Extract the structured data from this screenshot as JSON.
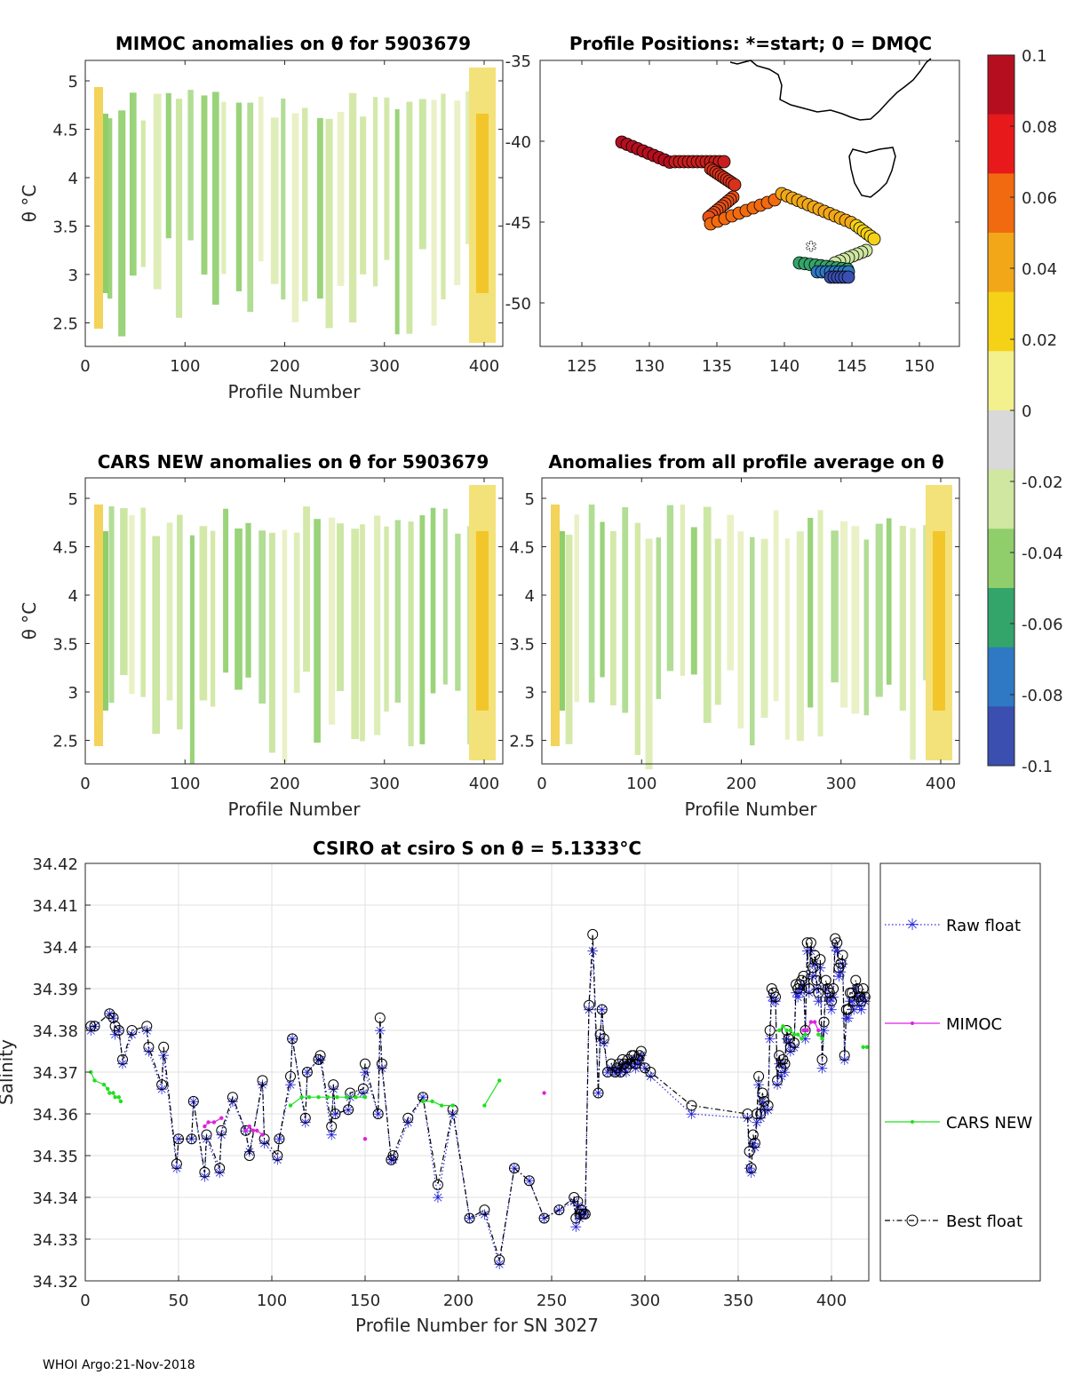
{
  "footer": "WHOI Argo:21-Nov-2018",
  "colorbar": {
    "ticks": [
      "0.1",
      "0.08",
      "0.06",
      "0.04",
      "0.02",
      "0",
      "-0.02",
      "-0.04",
      "-0.06",
      "-0.08",
      "-0.1"
    ],
    "colors": [
      "#b50f1f",
      "#e8191b",
      "#f26a10",
      "#f2a718",
      "#f5d218",
      "#f3f08e",
      "#d9d9d9",
      "#cfe7a0",
      "#8fce6a",
      "#33a56a",
      "#2f79c4",
      "#3a4fb0"
    ]
  },
  "panels": {
    "mimoc": {
      "title": "MIMOC anomalies on θ  for 5903679",
      "xlabel": "Profile Number",
      "ylabel": "θ °C",
      "xticks": [
        "0",
        "100",
        "200",
        "300",
        "400"
      ],
      "yticks": [
        "5",
        "4.5",
        "4",
        "3.5",
        "3",
        "2.5"
      ]
    },
    "positions": {
      "title": "Profile Positions: *=start; 0 = DMQC",
      "xticks": [
        "125",
        "130",
        "135",
        "140",
        "145",
        "150"
      ],
      "yticks": [
        "-35",
        "-40",
        "-45",
        "-50"
      ]
    },
    "cars": {
      "title": "CARS NEW anomalies on θ for 5903679",
      "xlabel": "Profile Number",
      "ylabel": "θ °C",
      "xticks": [
        "0",
        "100",
        "200",
        "300",
        "400"
      ],
      "yticks": [
        "5",
        "4.5",
        "4",
        "3.5",
        "3",
        "2.5"
      ]
    },
    "allavg": {
      "title": "Anomalies from all profile average on θ",
      "xlabel": "Profile Number",
      "xticks": [
        "0",
        "100",
        "200",
        "300",
        "400"
      ],
      "yticks": [
        "5",
        "4.5",
        "4",
        "3.5",
        "3",
        "2.5"
      ]
    }
  },
  "chart_data": {
    "type": "line",
    "title": "CSIRO at csiro S on θ = 5.1333°C",
    "xlabel": "Profile Number for SN 3027",
    "ylabel": "Salinity",
    "xlim": [
      0,
      420
    ],
    "ylim": [
      34.32,
      34.42
    ],
    "xticks": [
      "0",
      "50",
      "100",
      "150",
      "200",
      "250",
      "300",
      "350",
      "400"
    ],
    "yticks": [
      "34.42",
      "34.41",
      "34.4",
      "34.39",
      "34.38",
      "34.37",
      "34.36",
      "34.35",
      "34.34",
      "34.33",
      "34.32"
    ],
    "legend": [
      "Raw float",
      "MIMOC",
      "CARS NEW",
      "Best float"
    ],
    "series": [
      {
        "name": "Best float",
        "x": [
          3,
          5,
          13,
          15,
          16,
          18,
          20,
          25,
          33,
          34,
          41,
          42,
          49,
          50,
          57,
          58,
          64,
          65,
          72,
          73,
          79,
          86,
          88,
          95,
          96,
          103,
          104,
          110,
          111,
          118,
          119,
          125,
          126,
          132,
          133,
          134,
          141,
          142,
          149,
          150,
          157,
          158,
          159,
          164,
          165,
          173,
          181,
          189,
          197,
          206,
          214,
          222,
          230,
          238,
          246,
          254,
          262,
          263,
          264,
          265,
          266,
          267,
          268,
          270,
          272,
          275,
          276,
          277,
          278,
          280,
          282,
          284,
          285,
          286,
          287,
          288,
          289,
          290,
          291,
          292,
          293,
          294,
          295,
          296,
          297,
          298,
          300,
          303,
          325,
          355,
          356,
          357,
          358,
          359,
          360,
          361,
          362,
          363,
          364,
          366,
          367,
          368,
          369,
          370,
          371,
          372,
          373,
          374,
          375,
          376,
          377,
          378,
          380,
          381,
          382,
          383,
          384,
          385,
          386,
          387,
          388,
          389,
          390,
          391,
          392,
          393,
          394,
          395,
          396,
          397,
          398,
          399,
          400,
          401,
          402,
          403,
          404,
          405,
          406,
          407,
          408,
          409,
          410,
          411,
          412,
          413,
          414,
          415,
          416,
          417,
          418
        ],
        "y": [
          34.381,
          34.381,
          34.384,
          34.383,
          34.381,
          34.38,
          34.373,
          34.38,
          34.381,
          34.376,
          34.367,
          34.376,
          34.348,
          34.354,
          34.354,
          34.363,
          34.346,
          34.355,
          34.347,
          34.356,
          34.364,
          34.356,
          34.35,
          34.368,
          34.354,
          34.35,
          34.354,
          34.369,
          34.378,
          34.359,
          34.37,
          34.373,
          34.374,
          34.357,
          34.367,
          34.36,
          34.361,
          34.365,
          34.366,
          34.372,
          34.36,
          34.383,
          34.372,
          34.349,
          34.35,
          34.359,
          34.364,
          34.343,
          34.361,
          34.335,
          34.337,
          34.325,
          34.347,
          34.344,
          34.335,
          34.337,
          34.34,
          34.335,
          34.339,
          34.336,
          34.337,
          34.336,
          34.336,
          34.386,
          34.403,
          34.365,
          34.379,
          34.385,
          34.378,
          34.37,
          34.372,
          34.37,
          34.371,
          34.372,
          34.37,
          34.373,
          34.372,
          34.371,
          34.373,
          34.372,
          34.374,
          34.374,
          34.372,
          34.373,
          34.374,
          34.375,
          34.371,
          34.37,
          34.362,
          34.36,
          34.351,
          34.347,
          34.355,
          34.353,
          34.36,
          34.369,
          34.36,
          34.365,
          34.363,
          34.362,
          34.38,
          34.39,
          34.389,
          34.388,
          34.368,
          34.374,
          34.371,
          34.373,
          34.372,
          34.38,
          34.378,
          34.376,
          34.377,
          34.391,
          34.39,
          34.391,
          34.392,
          34.393,
          34.38,
          34.401,
          34.39,
          34.401,
          34.395,
          34.398,
          34.392,
          34.389,
          34.397,
          34.373,
          34.382,
          34.392,
          34.39,
          34.389,
          34.387,
          34.39,
          34.402,
          34.401,
          34.395,
          34.396,
          34.398,
          34.374,
          34.385,
          34.385,
          34.389,
          34.389,
          34.387,
          34.392,
          34.39,
          34.388,
          34.387,
          34.39,
          34.388
        ]
      },
      {
        "name": "Raw float",
        "x": [
          3,
          5,
          13,
          15,
          16,
          18,
          20,
          25,
          33,
          34,
          41,
          42,
          49,
          50,
          57,
          58,
          64,
          65,
          72,
          73,
          79,
          86,
          88,
          95,
          96,
          103,
          104,
          110,
          111,
          118,
          119,
          125,
          126,
          132,
          133,
          134,
          141,
          142,
          149,
          150,
          157,
          158,
          159,
          164,
          165,
          173,
          181,
          189,
          197,
          206,
          214,
          222,
          230,
          238,
          246,
          254,
          262,
          263,
          264,
          265,
          266,
          267,
          268,
          270,
          272,
          275,
          276,
          277,
          278,
          280,
          282,
          284,
          285,
          286,
          287,
          288,
          289,
          290,
          291,
          292,
          293,
          294,
          295,
          296,
          297,
          298,
          300,
          303,
          325,
          355,
          356,
          357,
          358,
          359,
          360,
          361,
          362,
          363,
          364,
          366,
          367,
          368,
          369,
          370,
          371,
          372,
          373,
          374,
          375,
          376,
          377,
          378,
          380,
          381,
          382,
          383,
          384,
          385,
          386,
          387,
          388,
          389,
          390,
          391,
          392,
          393,
          394,
          395,
          396,
          397,
          398,
          399,
          400,
          401,
          402,
          403,
          404,
          405,
          406,
          407,
          408,
          409,
          410,
          411,
          412,
          413,
          414,
          415,
          416,
          417,
          418
        ],
        "y": [
          34.38,
          34.381,
          34.384,
          34.383,
          34.379,
          34.38,
          34.372,
          34.379,
          34.38,
          34.375,
          34.366,
          34.374,
          34.347,
          34.354,
          34.354,
          34.363,
          34.345,
          34.354,
          34.346,
          34.355,
          34.363,
          34.356,
          34.351,
          34.367,
          34.353,
          34.349,
          34.354,
          34.367,
          34.378,
          34.358,
          34.37,
          34.373,
          34.373,
          34.355,
          34.366,
          34.36,
          34.361,
          34.364,
          34.365,
          34.37,
          34.36,
          34.38,
          34.371,
          34.349,
          34.349,
          34.358,
          34.364,
          34.34,
          34.36,
          34.335,
          34.336,
          34.324,
          34.347,
          34.344,
          34.335,
          34.337,
          34.339,
          34.333,
          34.338,
          34.335,
          34.336,
          34.337,
          34.336,
          34.385,
          34.399,
          34.365,
          34.378,
          34.385,
          34.377,
          34.37,
          34.371,
          34.37,
          34.37,
          34.371,
          34.37,
          34.372,
          34.371,
          34.37,
          34.372,
          34.372,
          34.373,
          34.373,
          34.371,
          34.372,
          34.373,
          34.374,
          34.371,
          34.369,
          34.36,
          34.359,
          34.347,
          34.346,
          34.353,
          34.352,
          34.358,
          34.367,
          34.359,
          34.363,
          34.361,
          34.361,
          34.378,
          34.388,
          34.387,
          34.387,
          34.367,
          34.372,
          34.369,
          34.372,
          34.37,
          34.378,
          34.377,
          34.375,
          34.376,
          34.389,
          34.388,
          34.389,
          34.39,
          34.391,
          34.378,
          34.399,
          34.389,
          34.399,
          34.393,
          34.396,
          34.39,
          34.387,
          34.395,
          34.371,
          34.38,
          34.39,
          34.388,
          34.387,
          34.385,
          34.388,
          34.4,
          34.399,
          34.393,
          34.394,
          34.396,
          34.373,
          34.383,
          34.383,
          34.387,
          34.387,
          34.385,
          34.39,
          34.388,
          34.386,
          34.385,
          34.388,
          34.387
        ]
      },
      {
        "name": "MIMOC",
        "segments": [
          {
            "x": [
              64,
              66,
              69,
              73
            ],
            "y": [
              34.357,
              34.358,
              34.358,
              34.359
            ]
          },
          {
            "x": [
              86,
              88,
              90,
              92,
              95
            ],
            "y": [
              34.356,
              34.357,
              34.356,
              34.356,
              34.355
            ]
          },
          {
            "x": [
              150
            ],
            "y": [
              34.354
            ]
          },
          {
            "x": [
              246
            ],
            "y": [
              34.365
            ]
          },
          {
            "x": [
              385,
              387,
              389,
              391,
              393
            ],
            "y": [
              34.38,
              34.38,
              34.382,
              34.382,
              34.38
            ]
          }
        ]
      },
      {
        "name": "CARS NEW",
        "segments": [
          {
            "x": [
              3,
              5,
              10,
              12,
              13,
              15,
              16,
              18,
              19
            ],
            "y": [
              34.37,
              34.368,
              34.367,
              34.366,
              34.365,
              34.365,
              34.364,
              34.364,
              34.363
            ]
          },
          {
            "x": [
              110,
              116,
              120,
              125,
              130,
              135,
              140,
              145,
              150
            ],
            "y": [
              34.362,
              34.364,
              34.364,
              34.364,
              34.364,
              34.364,
              34.364,
              34.364,
              34.364
            ]
          },
          {
            "x": [
              181,
              186,
              191,
              197
            ],
            "y": [
              34.363,
              34.363,
              34.362,
              34.362
            ]
          },
          {
            "x": [
              214,
              222
            ],
            "y": [
              34.362,
              34.368
            ]
          },
          {
            "x": [
              372,
              374,
              376,
              378,
              380,
              382,
              384,
              386
            ],
            "y": [
              34.38,
              34.381,
              34.38,
              34.38,
              34.379,
              34.379,
              34.378,
              34.379
            ]
          },
          {
            "x": [
              393,
              395
            ],
            "y": [
              34.379,
              34.378
            ]
          },
          {
            "x": [
              417,
              419
            ],
            "y": [
              34.376,
              34.376
            ]
          }
        ]
      }
    ]
  }
}
